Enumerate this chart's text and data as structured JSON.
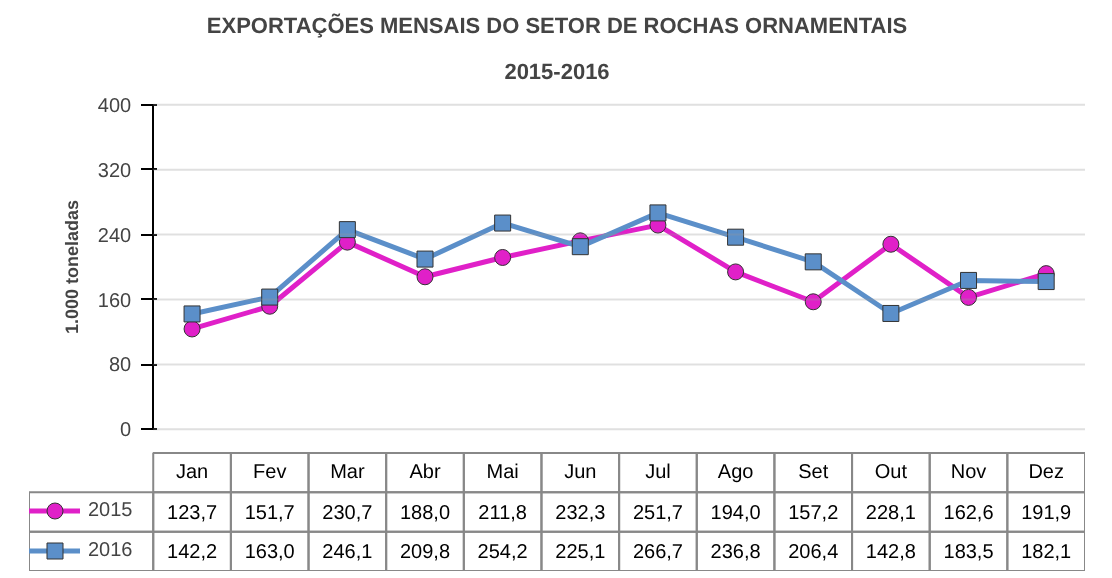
{
  "chart_data": {
    "type": "line",
    "title": "EXPORTAÇÕES MENSAIS DO SETOR DE ROCHAS ORNAMENTAIS",
    "subtitle": "2015-2016",
    "ylabel": "1.000 toneladas",
    "categories": [
      "Jan",
      "Fev",
      "Mar",
      "Abr",
      "Mai",
      "Jun",
      "Jul",
      "Ago",
      "Set",
      "Out",
      "Nov",
      "Dez"
    ],
    "series": [
      {
        "name": "2015",
        "color": "#e020c8",
        "marker": "circle",
        "values": [
          123.7,
          151.7,
          230.7,
          188.0,
          211.8,
          232.3,
          251.7,
          194.0,
          157.2,
          228.1,
          162.6,
          191.9
        ],
        "value_labels": [
          "123,7",
          "151,7",
          "230,7",
          "188,0",
          "211,8",
          "232,3",
          "251,7",
          "194,0",
          "157,2",
          "228,1",
          "162,6",
          "191,9"
        ]
      },
      {
        "name": "2016",
        "color": "#5b8fc9",
        "marker": "square",
        "values": [
          142.2,
          163.0,
          246.1,
          209.8,
          254.2,
          225.1,
          266.7,
          236.8,
          206.4,
          142.8,
          183.5,
          182.1
        ],
        "value_labels": [
          "142,2",
          "163,0",
          "246,1",
          "209,8",
          "254,2",
          "225,1",
          "266,7",
          "236,8",
          "206,4",
          "142,8",
          "183,5",
          "182,1"
        ]
      }
    ],
    "ylim": [
      0,
      400
    ],
    "yticks": [
      0,
      80,
      160,
      240,
      320,
      400
    ],
    "grid": "y",
    "legend": "bottom"
  }
}
